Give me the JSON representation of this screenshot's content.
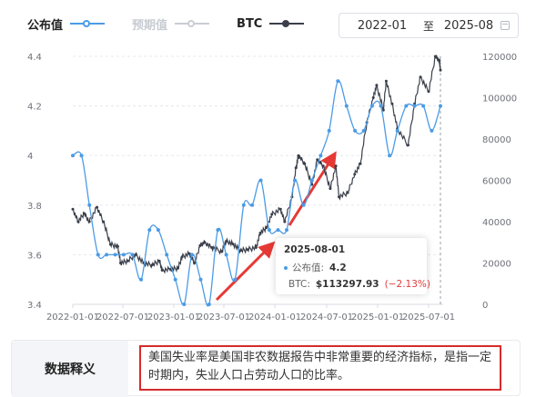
{
  "legend": {
    "published": {
      "label": "公布值",
      "color": "#4b9be6"
    },
    "forecast": {
      "label": "预期值",
      "color": "#c9cdd4"
    },
    "btc": {
      "label": "BTC",
      "color": "#3a3f4a"
    }
  },
  "date_range": {
    "start": "2022-01",
    "separator": "至",
    "end": "2025-08"
  },
  "tooltip": {
    "date": "2025-08-01",
    "published_label": "公布值:",
    "published_value": "4.2",
    "btc_label": "BTC:",
    "btc_value": "$113297.93",
    "btc_change": "(−2.13%)"
  },
  "explain": {
    "title": "数据释义",
    "text": "美国失业率是美国非农数据报告中非常重要的经济指标，是指一定时期内，失业人口占劳动人口的比率。"
  },
  "chart_data": {
    "type": "line",
    "x_ticks": [
      "2022-01-01",
      "2022-07-01",
      "2023-01-01",
      "2023-07-01",
      "2024-01-01",
      "2024-07-01",
      "2025-01-01",
      "2025-07-01"
    ],
    "left_axis": {
      "ticks": [
        "3.4",
        "3.6",
        "3.8",
        "4",
        "4.2",
        "4.4"
      ],
      "ylim": [
        3.4,
        4.4
      ]
    },
    "right_axis": {
      "ticks": [
        "0",
        "20000",
        "40000",
        "60000",
        "80000",
        "100000",
        "120000"
      ],
      "ylim": [
        0,
        120000
      ]
    },
    "series": [
      {
        "name": "公布值",
        "axis": "left",
        "color": "#4b9be6",
        "points": [
          [
            "2022-01-01",
            4.0
          ],
          [
            "2022-02-01",
            4.0
          ],
          [
            "2022-03-01",
            3.8
          ],
          [
            "2022-04-01",
            3.6
          ],
          [
            "2022-05-01",
            3.6
          ],
          [
            "2022-06-01",
            3.6
          ],
          [
            "2022-07-01",
            3.6
          ],
          [
            "2022-08-01",
            3.6
          ],
          [
            "2022-09-01",
            3.5
          ],
          [
            "2022-10-01",
            3.7
          ],
          [
            "2022-11-01",
            3.7
          ],
          [
            "2022-12-01",
            3.6
          ],
          [
            "2023-01-01",
            3.5
          ],
          [
            "2023-02-01",
            3.4
          ],
          [
            "2023-03-01",
            3.6
          ],
          [
            "2023-04-01",
            3.5
          ],
          [
            "2023-05-01",
            3.4
          ],
          [
            "2023-06-01",
            3.7
          ],
          [
            "2023-07-01",
            3.6
          ],
          [
            "2023-08-01",
            3.5
          ],
          [
            "2023-09-01",
            3.8
          ],
          [
            "2023-10-01",
            3.8
          ],
          [
            "2023-11-01",
            3.9
          ],
          [
            "2023-12-01",
            3.7
          ],
          [
            "2024-01-01",
            3.7
          ],
          [
            "2024-02-01",
            3.7
          ],
          [
            "2024-03-01",
            3.9
          ],
          [
            "2024-04-01",
            3.8
          ],
          [
            "2024-05-01",
            3.9
          ],
          [
            "2024-06-01",
            4.0
          ],
          [
            "2024-07-01",
            4.1
          ],
          [
            "2024-08-01",
            4.3
          ],
          [
            "2024-09-01",
            4.2
          ],
          [
            "2024-10-01",
            4.1
          ],
          [
            "2024-11-01",
            4.1
          ],
          [
            "2024-12-01",
            4.2
          ],
          [
            "2025-01-01",
            4.2
          ],
          [
            "2025-02-01",
            4.0
          ],
          [
            "2025-03-01",
            4.1
          ],
          [
            "2025-04-01",
            4.2
          ],
          [
            "2025-05-01",
            4.2
          ],
          [
            "2025-06-01",
            4.2
          ],
          [
            "2025-07-01",
            4.1
          ],
          [
            "2025-08-01",
            4.2
          ]
        ]
      },
      {
        "name": "BTC",
        "axis": "right",
        "color": "#3a3f4a",
        "points": [
          [
            "2022-01-01",
            46000
          ],
          [
            "2022-01-20",
            40000
          ],
          [
            "2022-02-10",
            44000
          ],
          [
            "2022-03-01",
            40000
          ],
          [
            "2022-03-28",
            47000
          ],
          [
            "2022-04-20",
            40000
          ],
          [
            "2022-05-15",
            29000
          ],
          [
            "2022-06-10",
            28000
          ],
          [
            "2022-06-20",
            20000
          ],
          [
            "2022-07-15",
            21000
          ],
          [
            "2022-08-12",
            24000
          ],
          [
            "2022-09-10",
            20000
          ],
          [
            "2022-10-10",
            19000
          ],
          [
            "2022-11-05",
            21000
          ],
          [
            "2022-11-15",
            16500
          ],
          [
            "2022-12-15",
            17000
          ],
          [
            "2023-01-10",
            17500
          ],
          [
            "2023-01-25",
            23000
          ],
          [
            "2023-02-20",
            24500
          ],
          [
            "2023-03-10",
            20000
          ],
          [
            "2023-03-30",
            28500
          ],
          [
            "2023-04-15",
            30000
          ],
          [
            "2023-05-10",
            27500
          ],
          [
            "2023-06-15",
            25500
          ],
          [
            "2023-07-01",
            30500
          ],
          [
            "2023-07-25",
            29200
          ],
          [
            "2023-08-20",
            26000
          ],
          [
            "2023-09-15",
            26500
          ],
          [
            "2023-10-15",
            27500
          ],
          [
            "2023-10-30",
            34500
          ],
          [
            "2023-11-20",
            37000
          ],
          [
            "2023-12-10",
            43500
          ],
          [
            "2024-01-10",
            46000
          ],
          [
            "2024-01-25",
            40000
          ],
          [
            "2024-02-20",
            52000
          ],
          [
            "2024-03-05",
            66000
          ],
          [
            "2024-03-14",
            72000
          ],
          [
            "2024-04-05",
            68000
          ],
          [
            "2024-05-01",
            58000
          ],
          [
            "2024-05-20",
            70000
          ],
          [
            "2024-06-10",
            67000
          ],
          [
            "2024-07-05",
            56000
          ],
          [
            "2024-07-25",
            67000
          ],
          [
            "2024-08-05",
            52000
          ],
          [
            "2024-09-05",
            54000
          ],
          [
            "2024-09-30",
            63000
          ],
          [
            "2024-10-20",
            68000
          ],
          [
            "2024-11-12",
            88000
          ],
          [
            "2024-12-05",
            100000
          ],
          [
            "2024-12-17",
            106000
          ],
          [
            "2025-01-10",
            94000
          ],
          [
            "2025-01-20",
            108000
          ],
          [
            "2025-02-10",
            97000
          ],
          [
            "2025-03-01",
            85000
          ],
          [
            "2025-04-08",
            77000
          ],
          [
            "2025-05-01",
            97000
          ],
          [
            "2025-05-22",
            110000
          ],
          [
            "2025-06-20",
            103000
          ],
          [
            "2025-07-14",
            120000
          ],
          [
            "2025-07-28",
            118000
          ],
          [
            "2025-08-01",
            113297.93
          ]
        ]
      }
    ],
    "highlight_x": "2025-08-01",
    "grid": "horizontal dashed"
  }
}
